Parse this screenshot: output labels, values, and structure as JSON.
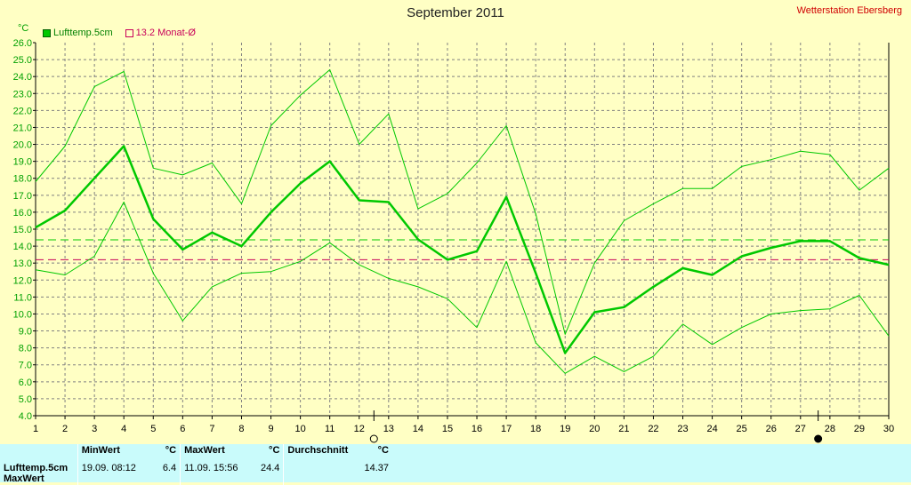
{
  "title": "September 2011",
  "station": "Wetterstation Ebersberg",
  "unit": "°C",
  "legend": [
    {
      "label": "Lufttemp.5cm",
      "color": "#00c800",
      "filled": true
    },
    {
      "label": "13.2 Monat-Ø",
      "color": "#c8005a",
      "filled": false
    }
  ],
  "colors": {
    "background": "#ffffc4",
    "grid": "#808080",
    "series": "#00c800",
    "monthly_avg": "#c8005a",
    "avg_line": "#00c800"
  },
  "chart_data": {
    "type": "line",
    "x": [
      1,
      2,
      3,
      4,
      5,
      6,
      7,
      8,
      9,
      10,
      11,
      12,
      13,
      14,
      15,
      16,
      17,
      18,
      19,
      20,
      21,
      22,
      23,
      24,
      25,
      26,
      27,
      28,
      29,
      30
    ],
    "xlim": [
      1,
      30
    ],
    "ylim": [
      4.0,
      26.0
    ],
    "yticks": [
      4.0,
      5.0,
      6.0,
      7.0,
      8.0,
      9.0,
      10.0,
      11.0,
      12.0,
      13.0,
      14.0,
      15.0,
      16.0,
      17.0,
      18.0,
      19.0,
      20.0,
      21.0,
      22.0,
      23.0,
      24.0,
      25.0,
      26.0
    ],
    "grid": true,
    "series": [
      {
        "name": "Lufttemp.5cm",
        "role": "max",
        "values": [
          17.8,
          19.9,
          23.4,
          24.3,
          18.6,
          18.2,
          18.9,
          16.5,
          21.1,
          22.9,
          24.4,
          20.0,
          21.8,
          16.2,
          17.1,
          18.9,
          21.1,
          15.9,
          8.8,
          13.0,
          15.5,
          16.5,
          17.4,
          17.4,
          18.7,
          19.1,
          19.6,
          19.4,
          17.3,
          18.6
        ]
      },
      {
        "name": "Lufttemp.5cm",
        "role": "mean",
        "values": [
          15.1,
          16.1,
          18.0,
          19.9,
          15.6,
          13.8,
          14.8,
          14.0,
          16.0,
          17.7,
          19.0,
          16.7,
          16.6,
          14.4,
          13.2,
          13.7,
          16.9,
          12.4,
          7.7,
          10.1,
          10.4,
          11.6,
          12.7,
          12.3,
          13.4,
          13.9,
          14.3,
          14.3,
          13.3,
          12.9
        ]
      },
      {
        "name": "Lufttemp.5cm",
        "role": "min",
        "values": [
          12.6,
          12.3,
          13.4,
          16.6,
          12.4,
          9.6,
          11.6,
          12.4,
          12.5,
          13.1,
          14.2,
          12.9,
          12.1,
          11.6,
          10.9,
          9.2,
          13.1,
          8.3,
          6.5,
          7.5,
          6.6,
          7.5,
          9.4,
          8.2,
          9.2,
          10.0,
          10.2,
          10.3,
          11.1,
          8.7
        ]
      }
    ],
    "reference_lines": [
      {
        "label": "13.2 Monat-Ø",
        "value": 13.2,
        "color": "#c8005a",
        "style": "dashed"
      },
      {
        "label": "Durchschnitt",
        "value": 14.37,
        "color": "#00c800",
        "style": "dashed"
      }
    ],
    "moon_phases": [
      {
        "day": 12.5,
        "phase": "full"
      },
      {
        "day": 27.6,
        "phase": "new"
      }
    ]
  },
  "stats": {
    "row_label": "Lufttemp.5cm",
    "row_label2": "MaxWert",
    "min_header": "MinWert",
    "max_header": "MaxWert",
    "avg_header": "Durchschnitt",
    "unit": "°C",
    "min_when": "19.09.  08:12",
    "min_value": "6.4",
    "max_when": "11.09.  15:56",
    "max_value": "24.4",
    "avg_value": "14.37"
  }
}
